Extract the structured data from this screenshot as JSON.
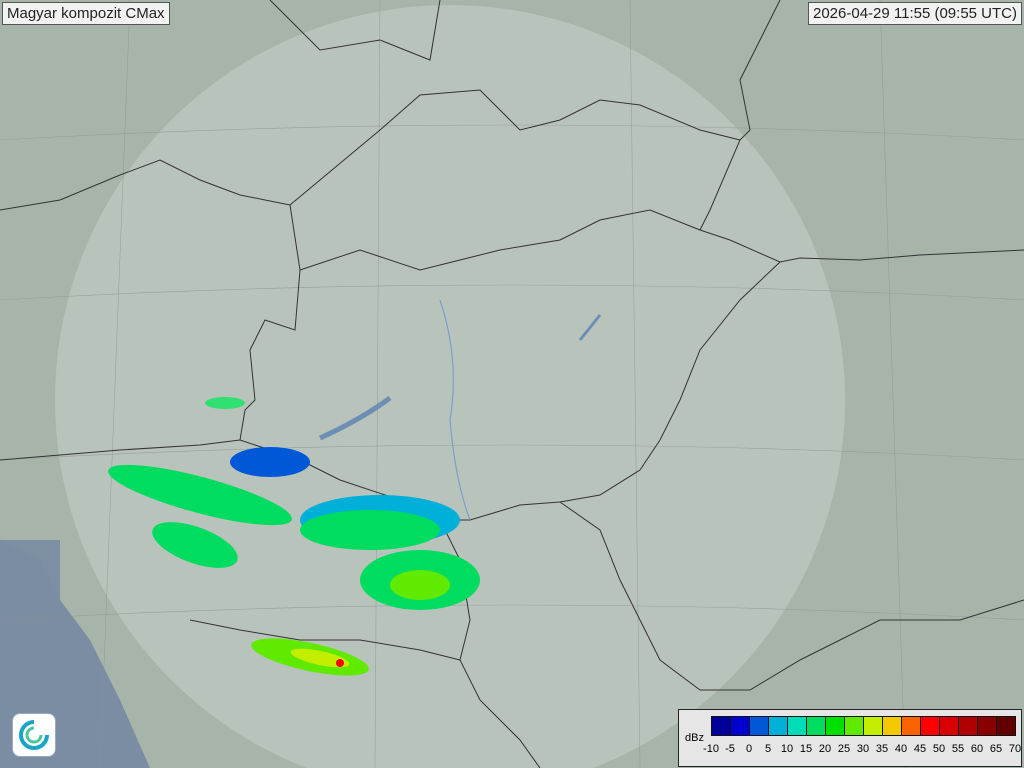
{
  "header": {
    "title": "Magyar kompozit  CMax",
    "timestamp": "2026-04-29 11:55 (09:55 UTC)"
  },
  "legend": {
    "unit": "dBz",
    "ticks": [
      "-10",
      "-5",
      "0",
      "5",
      "10",
      "15",
      "20",
      "25",
      "30",
      "35",
      "40",
      "45",
      "50",
      "55",
      "60",
      "65",
      "70"
    ],
    "colors": [
      "#000098",
      "#0000d0",
      "#0058d8",
      "#00b0d8",
      "#00dcb8",
      "#00dc60",
      "#00e000",
      "#60ea00",
      "#c4ee00",
      "#f4c800",
      "#fa6400",
      "#ff0000",
      "#d80000",
      "#b00000",
      "#880000",
      "#600000"
    ]
  },
  "logo": {
    "icon": "weather-service-swirl-logo"
  }
}
